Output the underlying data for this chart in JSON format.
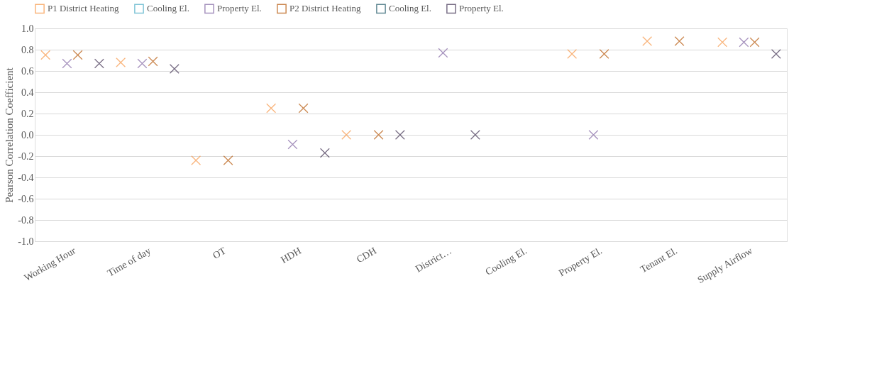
{
  "chart_data": {
    "type": "scatter",
    "ylabel": "Pearson Correlation Coefficient",
    "categories": [
      "Working Hour",
      "Time of day",
      "OT",
      "HDH",
      "CDH",
      "District…",
      "Cooling El.",
      "Property El.",
      "Tenant El.",
      "Supply Airflow"
    ],
    "series": [
      {
        "name": "P1 District Heating",
        "color": "#f79646",
        "values": [
          0.75,
          0.68,
          -0.24,
          0.25,
          0.0,
          null,
          null,
          0.76,
          0.88,
          0.87
        ]
      },
      {
        "name": "Cooling El.",
        "color": "#4bacc6",
        "values": [
          null,
          null,
          null,
          null,
          null,
          null,
          null,
          null,
          null,
          null
        ]
      },
      {
        "name": "Property El.",
        "color": "#8064a2",
        "values": [
          0.67,
          0.67,
          null,
          -0.09,
          null,
          0.77,
          null,
          0.0,
          null,
          0.87
        ]
      },
      {
        "name": "P2 District Heating",
        "color": "#b65708",
        "values": [
          0.75,
          0.69,
          -0.24,
          0.25,
          0.0,
          null,
          null,
          0.76,
          0.88,
          0.87
        ]
      },
      {
        "name": "Cooling El.",
        "color": "#215968",
        "values": [
          null,
          null,
          null,
          null,
          null,
          null,
          null,
          null,
          null,
          null
        ]
      },
      {
        "name": "Property El.",
        "color": "#403152",
        "values": [
          0.67,
          0.62,
          null,
          -0.17,
          0.0,
          0.0,
          null,
          null,
          null,
          0.76
        ]
      }
    ],
    "ylim": [
      -1.0,
      1.0
    ],
    "yticks": [
      {
        "value": -1.0,
        "label": "-1.0"
      },
      {
        "value": -0.8,
        "label": "-0.8"
      },
      {
        "value": -0.6,
        "label": "-0.6"
      },
      {
        "value": -0.4,
        "label": "-0.4"
      },
      {
        "value": -0.2,
        "label": "-0.2"
      },
      {
        "value": 0.0,
        "label": "0.0"
      },
      {
        "value": 0.2,
        "label": "0.2"
      },
      {
        "value": 0.4,
        "label": "0.4"
      },
      {
        "value": 0.6,
        "label": "0.6"
      },
      {
        "value": 0.8,
        "label": "0.8"
      },
      {
        "value": 1.0,
        "label": "1.0"
      }
    ],
    "grid": "y",
    "legend": "top",
    "marker": "cross"
  }
}
